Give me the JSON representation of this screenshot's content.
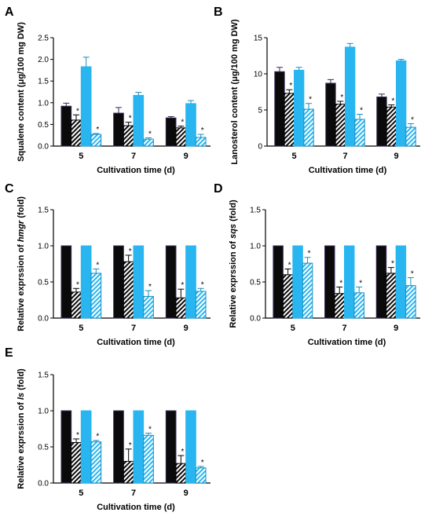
{
  "colors": {
    "black": "#0a0a0a",
    "blue": "#29b6f0",
    "black_edge": "#3a2a55"
  },
  "chart_data": [
    {
      "panel": "A",
      "type": "bar",
      "ylabel": "Squalene content (μg/100 mg DW)",
      "xlabel": "Cultivation time (d)",
      "categories": [
        "5",
        "7",
        "9"
      ],
      "ylim": [
        0,
        2.5
      ],
      "yticks": [
        0,
        0.5,
        1.0,
        1.5,
        2.0,
        2.5
      ],
      "ytick_labels": [
        "0.0",
        "0.5",
        "1.0",
        "1.5",
        "2.0",
        "2.5"
      ],
      "series": [
        {
          "style": "solid-black",
          "values": [
            0.92,
            0.76,
            0.65
          ],
          "errors": [
            0.07,
            0.13,
            0.03
          ],
          "sig": [
            false,
            false,
            false
          ]
        },
        {
          "style": "hatch-black",
          "values": [
            0.6,
            0.47,
            0.42
          ],
          "errors": [
            0.12,
            0.08,
            0.04
          ],
          "sig": [
            true,
            true,
            true
          ]
        },
        {
          "style": "solid-blue",
          "values": [
            1.83,
            1.17,
            0.98
          ],
          "errors": [
            0.22,
            0.07,
            0.07
          ],
          "sig": [
            false,
            false,
            false
          ]
        },
        {
          "style": "hatch-blue",
          "values": [
            0.27,
            0.16,
            0.2
          ],
          "errors": [
            0.02,
            0.03,
            0.07
          ],
          "sig": [
            true,
            true,
            true
          ]
        }
      ],
      "stars": "*"
    },
    {
      "panel": "B",
      "type": "bar",
      "ylabel": "Lanosterol content (μg/100 mg DW)",
      "xlabel": "Cultivation time (d)",
      "categories": [
        "5",
        "7",
        "9"
      ],
      "ylim": [
        0,
        15
      ],
      "yticks": [
        0,
        5,
        10,
        15
      ],
      "ytick_labels": [
        "0",
        "5",
        "10",
        "15"
      ],
      "series": [
        {
          "style": "solid-black",
          "values": [
            10.3,
            8.7,
            6.8
          ],
          "errors": [
            0.6,
            0.5,
            0.4
          ],
          "sig": [
            false,
            false,
            false
          ]
        },
        {
          "style": "hatch-black",
          "values": [
            7.3,
            5.8,
            5.4
          ],
          "errors": [
            0.5,
            0.4,
            0.3
          ],
          "sig": [
            true,
            true,
            true
          ]
        },
        {
          "style": "solid-blue",
          "values": [
            10.5,
            13.7,
            11.8
          ],
          "errors": [
            0.4,
            0.5,
            0.2
          ],
          "sig": [
            false,
            false,
            false
          ]
        },
        {
          "style": "hatch-blue",
          "values": [
            5.1,
            3.7,
            2.6
          ],
          "errors": [
            0.8,
            0.7,
            0.5
          ],
          "sig": [
            true,
            true,
            true
          ]
        }
      ],
      "stars": "*"
    },
    {
      "panel": "C",
      "type": "bar",
      "ylabel_prefix": "Relative exprssion of ",
      "ylabel_gene": "hmgr",
      "ylabel_suffix": " (fold)",
      "xlabel": "Cultivation time (d)",
      "categories": [
        "5",
        "7",
        "9"
      ],
      "ylim": [
        0,
        1.5
      ],
      "yticks": [
        0,
        0.5,
        1.0,
        1.5
      ],
      "ytick_labels": [
        "0.0",
        "0.5",
        "1.0",
        "1.5"
      ],
      "series": [
        {
          "style": "solid-black",
          "values": [
            1.0,
            1.0,
            1.0
          ],
          "errors": [
            0,
            0,
            0
          ],
          "sig": [
            false,
            false,
            false
          ]
        },
        {
          "style": "hatch-black",
          "values": [
            0.36,
            0.78,
            0.28
          ],
          "errors": [
            0.05,
            0.09,
            0.12
          ],
          "sig": [
            true,
            true,
            true
          ]
        },
        {
          "style": "solid-blue",
          "values": [
            1.0,
            1.0,
            1.0
          ],
          "errors": [
            0,
            0,
            0
          ],
          "sig": [
            false,
            false,
            false
          ]
        },
        {
          "style": "hatch-blue",
          "values": [
            0.62,
            0.3,
            0.37
          ],
          "errors": [
            0.06,
            0.08,
            0.04
          ],
          "sig": [
            true,
            true,
            true
          ]
        }
      ],
      "stars": "*"
    },
    {
      "panel": "D",
      "type": "bar",
      "ylabel_prefix": "Relative exprssion of ",
      "ylabel_gene": "sqs",
      "ylabel_suffix": " (fold)",
      "xlabel": "Cultivation time (d)",
      "categories": [
        "5",
        "7",
        "9"
      ],
      "ylim": [
        0,
        1.5
      ],
      "yticks": [
        0,
        0.5,
        1.0,
        1.5
      ],
      "ytick_labels": [
        "0.0",
        "0.5",
        "1.0",
        "1.5"
      ],
      "series": [
        {
          "style": "solid-black",
          "values": [
            1.0,
            1.0,
            1.0
          ],
          "errors": [
            0,
            0,
            0
          ],
          "sig": [
            false,
            false,
            false
          ]
        },
        {
          "style": "hatch-black",
          "values": [
            0.6,
            0.34,
            0.62
          ],
          "errors": [
            0.08,
            0.09,
            0.08
          ],
          "sig": [
            true,
            true,
            true
          ]
        },
        {
          "style": "solid-blue",
          "values": [
            1.0,
            1.0,
            1.0
          ],
          "errors": [
            0,
            0,
            0
          ],
          "sig": [
            false,
            false,
            false
          ]
        },
        {
          "style": "hatch-blue",
          "values": [
            0.76,
            0.35,
            0.45
          ],
          "errors": [
            0.08,
            0.08,
            0.11
          ],
          "sig": [
            true,
            true,
            true
          ]
        }
      ],
      "stars": "*"
    },
    {
      "panel": "E",
      "type": "bar",
      "ylabel_prefix": "Relative exprssion of ",
      "ylabel_gene": "ls",
      "ylabel_suffix": " (fold)",
      "xlabel": "Cultivation time (d)",
      "categories": [
        "5",
        "7",
        "9"
      ],
      "ylim": [
        0,
        1.5
      ],
      "yticks": [
        0,
        0.5,
        1.0,
        1.5
      ],
      "ytick_labels": [
        "0.0",
        "0.5",
        "1.0",
        "1.5"
      ],
      "series": [
        {
          "style": "solid-black",
          "values": [
            1.0,
            1.0,
            1.0
          ],
          "errors": [
            0,
            0,
            0
          ],
          "sig": [
            false,
            false,
            false
          ]
        },
        {
          "style": "hatch-black",
          "values": [
            0.56,
            0.3,
            0.27
          ],
          "errors": [
            0.05,
            0.17,
            0.11
          ],
          "sig": [
            true,
            true,
            true
          ]
        },
        {
          "style": "solid-blue",
          "values": [
            1.0,
            1.0,
            1.0
          ],
          "errors": [
            0,
            0,
            0
          ],
          "sig": [
            false,
            false,
            false
          ]
        },
        {
          "style": "hatch-blue",
          "values": [
            0.57,
            0.66,
            0.21
          ],
          "errors": [
            0.02,
            0.03,
            0.02
          ],
          "sig": [
            true,
            true,
            true
          ]
        }
      ],
      "stars": "*"
    }
  ]
}
